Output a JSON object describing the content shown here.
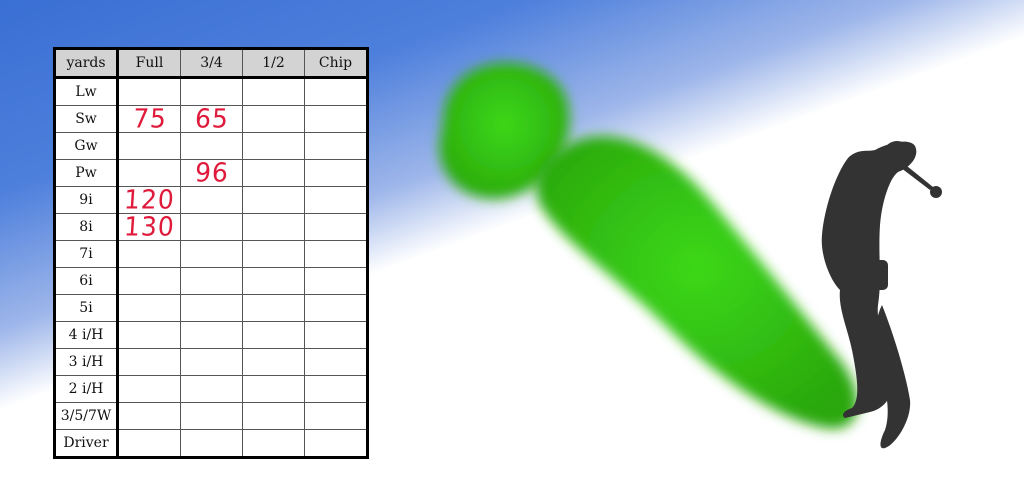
{
  "table": {
    "headers": [
      "yards",
      "Full",
      "3/4",
      "1/2",
      "Chip"
    ],
    "rows": [
      {
        "club": "Lw",
        "full": "",
        "three_quarter": "",
        "half": "",
        "chip": ""
      },
      {
        "club": "Sw",
        "full": "75",
        "three_quarter": "65",
        "half": "",
        "chip": ""
      },
      {
        "club": "Gw",
        "full": "",
        "three_quarter": "",
        "half": "",
        "chip": ""
      },
      {
        "club": "Pw",
        "full": "",
        "three_quarter": "96",
        "half": "",
        "chip": ""
      },
      {
        "club": "9i",
        "full": "120",
        "three_quarter": "",
        "half": "",
        "chip": ""
      },
      {
        "club": "8i",
        "full": "130",
        "three_quarter": "",
        "half": "",
        "chip": ""
      },
      {
        "club": "7i",
        "full": "",
        "three_quarter": "",
        "half": "",
        "chip": ""
      },
      {
        "club": "6i",
        "full": "",
        "three_quarter": "",
        "half": "",
        "chip": ""
      },
      {
        "club": "5i",
        "full": "",
        "three_quarter": "",
        "half": "",
        "chip": ""
      },
      {
        "club": "4 i/H",
        "full": "",
        "three_quarter": "",
        "half": "",
        "chip": ""
      },
      {
        "club": "3 i/H",
        "full": "",
        "three_quarter": "",
        "half": "",
        "chip": ""
      },
      {
        "club": "2 i/H",
        "full": "",
        "three_quarter": "",
        "half": "",
        "chip": ""
      },
      {
        "club": "3/5/7W",
        "full": "",
        "three_quarter": "",
        "half": "",
        "chip": ""
      },
      {
        "club": "Driver",
        "full": "",
        "three_quarter": "",
        "half": "",
        "chip": ""
      }
    ]
  },
  "colors": {
    "handwriting": "#e01a3a",
    "fairway": "#3cc81a",
    "golfer_silhouette": "#333333",
    "sky_blue": "#3a6fd3"
  },
  "icons": [
    "golfer-silhouette-icon",
    "fairway-green-shape"
  ]
}
